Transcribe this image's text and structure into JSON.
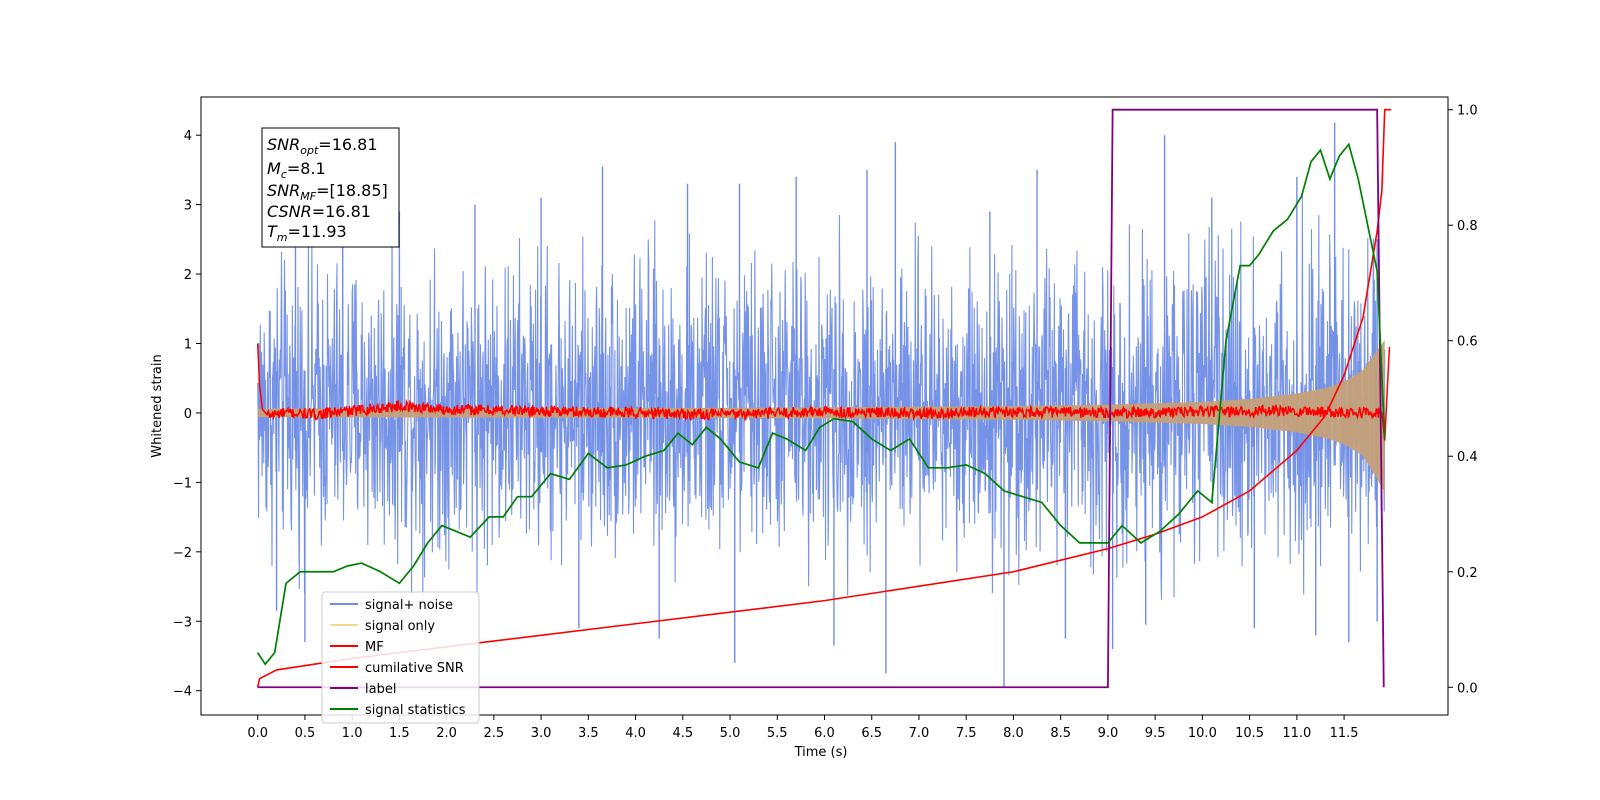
{
  "chart_data": {
    "type": "line",
    "xlabel": "Time (s)",
    "ylabel": "Whitened strain",
    "xlim": [
      -0.6,
      12.6
    ],
    "ylim": [
      -4.35,
      4.55
    ],
    "y2lim": [
      -0.048,
      1.022
    ],
    "x_ticks": [
      "0.0",
      "0.5",
      "1.0",
      "1.5",
      "2.0",
      "2.5",
      "3.0",
      "3.5",
      "4.0",
      "4.5",
      "5.0",
      "5.5",
      "6.0",
      "6.5",
      "7.0",
      "7.5",
      "8.0",
      "8.5",
      "9.0",
      "9.5",
      "10.0",
      "10.5",
      "11.0",
      "11.5"
    ],
    "y_ticks": [
      "4",
      "3",
      "2",
      "1",
      "0",
      "−1",
      "−2",
      "−3",
      "−4"
    ],
    "y2_ticks": [
      "1.0",
      "0.8",
      "0.6",
      "0.4",
      "0.2",
      "0.0"
    ],
    "legend": {
      "location": "lower-left",
      "entries": [
        "signal+ noise",
        "signal only",
        "MF",
        "cumilative SNR",
        "label",
        "signal statistics"
      ]
    },
    "colors": {
      "noise": "#6f8de6",
      "signal": "#c4a079",
      "signal_legend": "#f7d58c",
      "mf": "#ff0000",
      "csnr": "#ff0000",
      "label": "#800080",
      "stats": "#008000"
    },
    "annotation": {
      "snr_opt_sym": "SNR",
      "snr_opt_sub": "opt",
      "snr_opt_val": "=16.81",
      "mc_sym": "M",
      "mc_sub": "c",
      "mc_val": "=8.1",
      "snr_mf_sym": "SNR",
      "snr_mf_sub": "MF",
      "snr_mf_val": "=[18.85]",
      "csnr_sym": "CSNR",
      "csnr_val": "=16.81",
      "tm_sym": "T",
      "tm_sub": "m",
      "tm_val": "=11.93"
    },
    "series": [
      {
        "name": "signal+ noise",
        "axis": "left",
        "envelope": {
          "x": [
            0.0,
            2.0,
            4.0,
            6.0,
            8.0,
            9.0,
            10.0,
            10.5,
            11.0,
            11.3,
            11.6,
            11.8,
            11.93
          ],
          "top": [
            2.0,
            2.1,
            2.1,
            2.1,
            2.1,
            2.2,
            2.2,
            2.2,
            2.25,
            2.3,
            2.1,
            2.0,
            1.9
          ],
          "bottom": [
            -1.8,
            -1.9,
            -1.9,
            -1.9,
            -1.9,
            -1.95,
            -2.0,
            -2.0,
            -2.0,
            -2.1,
            -1.9,
            -1.8,
            -1.4
          ]
        },
        "spikes": [
          {
            "x": 0.4,
            "y": 2.6
          },
          {
            "x": 0.9,
            "y": 2.5
          },
          {
            "x": 1.5,
            "y": 2.9
          },
          {
            "x": 2.3,
            "y": 3.0
          },
          {
            "x": 3.0,
            "y": 3.1
          },
          {
            "x": 3.65,
            "y": 3.55
          },
          {
            "x": 4.55,
            "y": 3.3
          },
          {
            "x": 5.1,
            "y": 3.3
          },
          {
            "x": 5.7,
            "y": 3.4
          },
          {
            "x": 6.45,
            "y": 3.5
          },
          {
            "x": 6.75,
            "y": 3.9
          },
          {
            "x": 7.75,
            "y": 2.9
          },
          {
            "x": 8.25,
            "y": 3.5
          },
          {
            "x": 9.6,
            "y": 4.0
          },
          {
            "x": 10.1,
            "y": 3.1
          },
          {
            "x": 11.0,
            "y": 3.4
          },
          {
            "x": 11.4,
            "y": 4.18
          },
          {
            "x": 11.85,
            "y": 2.5
          },
          {
            "x": 0.2,
            "y": -2.85
          },
          {
            "x": 0.5,
            "y": -3.3
          },
          {
            "x": 3.4,
            "y": -3.1
          },
          {
            "x": 4.25,
            "y": -3.25
          },
          {
            "x": 5.05,
            "y": -3.6
          },
          {
            "x": 6.1,
            "y": -3.35
          },
          {
            "x": 6.65,
            "y": -3.75
          },
          {
            "x": 7.9,
            "y": -3.95
          },
          {
            "x": 8.55,
            "y": -3.25
          },
          {
            "x": 9.05,
            "y": -3.4
          },
          {
            "x": 9.4,
            "y": -3.05
          },
          {
            "x": 10.55,
            "y": -3.1
          },
          {
            "x": 11.2,
            "y": -3.2
          },
          {
            "x": 11.55,
            "y": -3.3
          },
          {
            "x": 11.85,
            "y": -3.0
          }
        ]
      },
      {
        "name": "signal only",
        "axis": "left",
        "envelope": {
          "x": [
            0.0,
            4.0,
            6.0,
            8.0,
            9.0,
            10.0,
            10.5,
            11.0,
            11.3,
            11.5,
            11.7,
            11.85,
            11.93
          ],
          "top": [
            0.06,
            0.07,
            0.08,
            0.1,
            0.12,
            0.16,
            0.2,
            0.28,
            0.36,
            0.45,
            0.62,
            0.9,
            1.05
          ],
          "bottom": [
            -0.06,
            -0.07,
            -0.08,
            -0.1,
            -0.12,
            -0.16,
            -0.2,
            -0.28,
            -0.36,
            -0.45,
            -0.62,
            -0.95,
            -1.15
          ]
        }
      },
      {
        "name": "MF",
        "axis": "left",
        "x": [
          0.0,
          0.02,
          0.05,
          0.1,
          0.3,
          0.6,
          1.0,
          1.5,
          2.0,
          3.0,
          4.0,
          5.0,
          6.0,
          7.0,
          8.0,
          9.0,
          10.0,
          11.0,
          11.9,
          11.93,
          11.98
        ],
        "y": [
          1.0,
          0.4,
          0.05,
          -0.03,
          0.0,
          -0.02,
          0.03,
          0.1,
          0.05,
          0.03,
          0.0,
          -0.02,
          0.02,
          -0.01,
          0.02,
          0.0,
          0.02,
          0.03,
          0.0,
          -0.4,
          0.95
        ]
      },
      {
        "name": "cumilative SNR",
        "axis": "right",
        "x": [
          0.0,
          0.02,
          0.2,
          1.0,
          2.0,
          3.0,
          4.0,
          5.0,
          6.0,
          7.0,
          8.0,
          9.0,
          9.5,
          10.0,
          10.5,
          11.0,
          11.3,
          11.5,
          11.7,
          11.85,
          11.9,
          11.93,
          12.0
        ],
        "y": [
          0.0,
          0.015,
          0.03,
          0.05,
          0.07,
          0.09,
          0.11,
          0.13,
          0.15,
          0.175,
          0.2,
          0.24,
          0.265,
          0.295,
          0.34,
          0.41,
          0.47,
          0.54,
          0.64,
          0.79,
          0.86,
          1.0,
          1.0
        ]
      },
      {
        "name": "label",
        "axis": "right",
        "x": [
          0.0,
          9.0,
          9.05,
          11.85,
          11.92
        ],
        "y": [
          0.0,
          0.0,
          1.0,
          1.0,
          0.0
        ]
      },
      {
        "name": "signal statistics",
        "axis": "right",
        "x": [
          0.0,
          0.08,
          0.18,
          0.3,
          0.45,
          0.65,
          0.8,
          0.95,
          1.1,
          1.3,
          1.5,
          1.65,
          1.8,
          1.95,
          2.1,
          2.25,
          2.45,
          2.6,
          2.75,
          2.9,
          3.1,
          3.3,
          3.5,
          3.7,
          3.9,
          4.1,
          4.3,
          4.45,
          4.6,
          4.75,
          4.9,
          5.1,
          5.3,
          5.45,
          5.6,
          5.8,
          5.95,
          6.1,
          6.3,
          6.5,
          6.7,
          6.9,
          7.1,
          7.3,
          7.5,
          7.7,
          7.9,
          8.1,
          8.3,
          8.5,
          8.7,
          8.9,
          9.0,
          9.15,
          9.35,
          9.55,
          9.75,
          9.95,
          10.1,
          10.25,
          10.4,
          10.5,
          10.6,
          10.75,
          10.9,
          11.05,
          11.15,
          11.25,
          11.35,
          11.45,
          11.55,
          11.65,
          11.75,
          11.85,
          11.93
        ],
        "y": [
          0.06,
          0.04,
          0.06,
          0.18,
          0.2,
          0.2,
          0.2,
          0.21,
          0.215,
          0.2,
          0.18,
          0.21,
          0.25,
          0.28,
          0.27,
          0.26,
          0.295,
          0.295,
          0.33,
          0.33,
          0.37,
          0.36,
          0.405,
          0.38,
          0.385,
          0.4,
          0.41,
          0.44,
          0.42,
          0.45,
          0.43,
          0.39,
          0.38,
          0.44,
          0.43,
          0.41,
          0.45,
          0.465,
          0.46,
          0.43,
          0.41,
          0.43,
          0.38,
          0.38,
          0.385,
          0.37,
          0.34,
          0.33,
          0.32,
          0.28,
          0.25,
          0.25,
          0.25,
          0.28,
          0.25,
          0.27,
          0.3,
          0.34,
          0.32,
          0.6,
          0.73,
          0.73,
          0.75,
          0.79,
          0.81,
          0.85,
          0.91,
          0.93,
          0.88,
          0.92,
          0.94,
          0.88,
          0.8,
          0.72,
          0.43
        ]
      }
    ]
  }
}
